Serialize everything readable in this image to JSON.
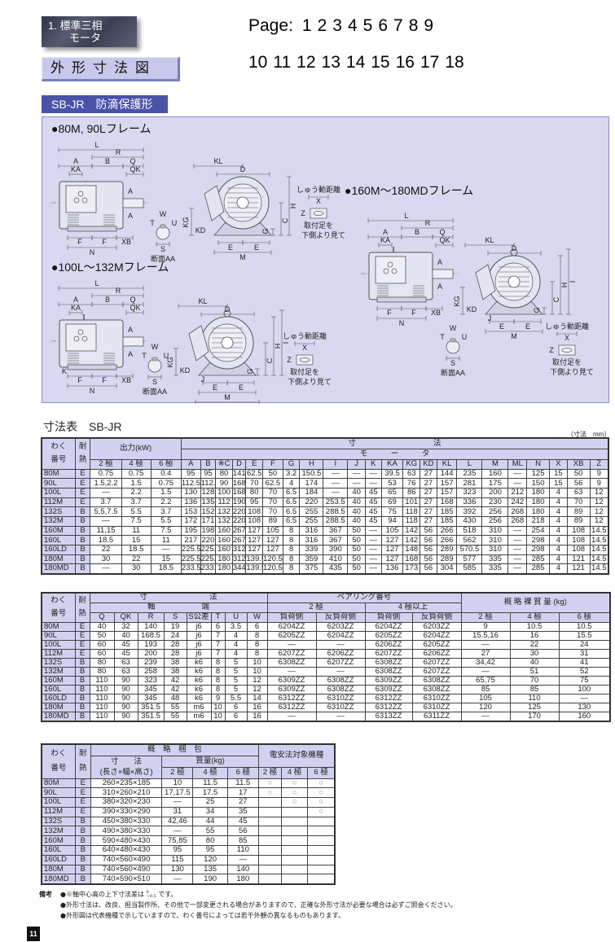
{
  "header": {
    "category_line1": "1. 標準三相",
    "category_line2": "モータ",
    "section_title": "外形寸法図",
    "model_band": "SB-JR　防滴保護形"
  },
  "page_nav": {
    "label": "Page:",
    "row1": [
      "1",
      "2",
      "3",
      "4",
      "5",
      "6",
      "7",
      "8",
      "9"
    ],
    "row2": [
      "10",
      "11",
      "12",
      "13",
      "14",
      "15",
      "16",
      "17",
      "18"
    ]
  },
  "drawings": {
    "section_label": "断面AA",
    "slide_label": "しゅう動距離",
    "foot_note_line1": "取付足を",
    "foot_note_line2": "下側より見て",
    "dim": {
      "L": "L",
      "R": "R",
      "A": "A",
      "B": "B",
      "Q": "Q",
      "QK": "QK",
      "KA": "KA",
      "F": "F",
      "XB": "XB",
      "N": "N",
      "W": "W",
      "T": "T",
      "U": "U",
      "S": "S",
      "KL": "KL",
      "D": "D",
      "H": "H",
      "C": "C",
      "G": "G",
      "KG": "KG",
      "KD": "KD",
      "E": "E",
      "M": "M",
      "X": "X",
      "Z": "Z",
      "K": "K",
      "J": "J",
      "ML": "ML",
      "I": "I"
    },
    "items": [
      {
        "title": "●80M, 90Lフレーム",
        "extra_dims": []
      },
      {
        "title": "●100L～132Mフレーム",
        "extra_dims": [
          "K",
          "J",
          "ML",
          "I"
        ]
      },
      {
        "title": "●160M～180MDフレーム",
        "extra_dims": [
          "J",
          "I"
        ]
      }
    ],
    "colors": {
      "panel": "#d8d8f0",
      "line": "#555555"
    }
  },
  "table_title": "寸法表　SB-JR",
  "unit_note": "（寸法　mm）",
  "table1": {
    "h_frame1": "わく",
    "h_frame2": "番号",
    "h_heat1": "耐",
    "h_heat2": "熱",
    "h_output": "出力(kW)",
    "h_dims": "寸　　　　　　　　　　法",
    "h_motor": "モ　　　ー　　　タ",
    "poles": [
      "2 極",
      "4 極",
      "6 極"
    ],
    "dim_cols": [
      "A",
      "B",
      "※C",
      "D",
      "E",
      "F",
      "G",
      "H",
      "I",
      "J",
      "K",
      "KA",
      "KG",
      "KD",
      "KL",
      "L",
      "M",
      "ML",
      "N",
      "X",
      "XB",
      "Z"
    ],
    "rows": [
      [
        "80M",
        "E",
        "0.75",
        "0.75",
        "0.4",
        "95",
        "95",
        "80",
        "141",
        "62.5",
        "50",
        "3.2",
        "150.5",
        "—",
        "—",
        "—",
        "39.5",
        "63",
        "27",
        "144",
        "235",
        "160",
        "—",
        "125",
        "15",
        "50",
        "9"
      ],
      [
        "90L",
        "E",
        "1.5,2.2",
        "1.5",
        "0.75",
        "112.5",
        "112.5",
        "90",
        "168",
        "70",
        "62.5",
        "4",
        "174",
        "—",
        "—",
        "—",
        "53",
        "76",
        "27",
        "157",
        "281",
        "175",
        "—",
        "150",
        "15",
        "56",
        "9"
      ],
      [
        "100L",
        "E",
        "—",
        "2.2",
        "1.5",
        "130",
        "128",
        "100",
        "168",
        "80",
        "70",
        "6.5",
        "184",
        "—",
        "40",
        "45",
        "65",
        "86",
        "27",
        "157",
        "323",
        "200",
        "212",
        "180",
        "4",
        "63",
        "12"
      ],
      [
        "112M",
        "E",
        "3.7",
        "3.7",
        "2.2",
        "136",
        "135",
        "112",
        "190",
        "95",
        "70",
        "6.5",
        "220",
        "253.5",
        "40",
        "45",
        "69",
        "101",
        "27",
        "168",
        "336",
        "230",
        "242",
        "180",
        "4",
        "70",
        "12"
      ],
      [
        "132S",
        "B",
        "5.5,7.5",
        "5.5",
        "3.7",
        "153",
        "152",
        "132",
        "220",
        "108",
        "70",
        "6.5",
        "255",
        "288.5",
        "40",
        "45",
        "75",
        "118",
        "27",
        "185",
        "392",
        "256",
        "268",
        "180",
        "4",
        "89",
        "12"
      ],
      [
        "132M",
        "B",
        "—",
        "7.5",
        "5.5",
        "172",
        "171",
        "132",
        "220",
        "108",
        "89",
        "6.5",
        "255",
        "288.5",
        "40",
        "45",
        "94",
        "118",
        "27",
        "185",
        "430",
        "256",
        "268",
        "218",
        "4",
        "89",
        "12"
      ],
      [
        "160M",
        "B",
        "11,15",
        "11",
        "7.5",
        "195",
        "198",
        "160",
        "267",
        "127",
        "105",
        "8",
        "316",
        "367",
        "50",
        "—",
        "105",
        "142",
        "56",
        "266",
        "518",
        "310",
        "—",
        "254",
        "4",
        "108",
        "14.5"
      ],
      [
        "160L",
        "B",
        "18.5",
        "15",
        "11",
        "217",
        "220",
        "160",
        "267",
        "127",
        "127",
        "8",
        "316",
        "367",
        "50",
        "—",
        "127",
        "142",
        "56",
        "266",
        "562",
        "310",
        "—",
        "298",
        "4",
        "108",
        "14.5"
      ],
      [
        "160LD",
        "B",
        "22",
        "18.5",
        "—",
        "225.5",
        "225.5",
        "160",
        "312",
        "127",
        "127",
        "8",
        "339",
        "390",
        "50",
        "—",
        "127",
        "148",
        "56",
        "289",
        "570.5",
        "310",
        "—",
        "298",
        "4",
        "108",
        "14.5"
      ],
      [
        "180M",
        "B",
        "30",
        "22",
        "15",
        "225.5",
        "225.5",
        "180",
        "312",
        "139.5",
        "120.5",
        "8",
        "359",
        "410",
        "50",
        "—",
        "127",
        "168",
        "56",
        "289",
        "577",
        "335",
        "—",
        "285",
        "4",
        "121",
        "14.5"
      ],
      [
        "180MD",
        "B",
        "—",
        "30",
        "18.5",
        "233.5",
        "233.5",
        "180",
        "344",
        "139.5",
        "120.5",
        "8",
        "375",
        "435",
        "50",
        "—",
        "136",
        "173",
        "56",
        "304",
        "585",
        "335",
        "—",
        "285",
        "4",
        "121",
        "14.5"
      ]
    ]
  },
  "table2": {
    "h_frame1": "わく",
    "h_frame2": "番号",
    "h_heat1": "耐",
    "h_heat2": "熱",
    "h_dims": "寸　　　　　　　　法",
    "h_shaft": "軸　　　　　　端",
    "h_bearing": "ベアリング番号",
    "h_2pole": "2 極",
    "h_4pole_up": "4 極以上",
    "h_mass": "概 略 裸 質 量 (kg)",
    "cols": [
      "Q",
      "QK",
      "R",
      "S",
      "S公差",
      "T",
      "U",
      "W",
      "負荷側",
      "反負荷側",
      "負荷側",
      "反負荷側",
      "2 極",
      "4 極",
      "6 極"
    ],
    "rows": [
      [
        "80M",
        "E",
        "40",
        "32",
        "140",
        "19",
        "j6",
        "6",
        "3.5",
        "6",
        "6204ZZ",
        "6203ZZ",
        "6204ZZ",
        "6203ZZ",
        "9",
        "10.5",
        "10.5"
      ],
      [
        "90L",
        "E",
        "50",
        "40",
        "168.5",
        "24",
        "j6",
        "7",
        "4",
        "8",
        "6205ZZ",
        "6204ZZ",
        "6205ZZ",
        "6204ZZ",
        "15.5,16",
        "16",
        "15.5"
      ],
      [
        "100L",
        "E",
        "60",
        "45",
        "193",
        "28",
        "j6",
        "7",
        "4",
        "8",
        "—",
        "—",
        "6206ZZ",
        "6205ZZ",
        "—",
        "22",
        "24"
      ],
      [
        "112M",
        "E",
        "60",
        "45",
        "200",
        "28",
        "j6",
        "7",
        "4",
        "8",
        "6207ZZ",
        "6206ZZ",
        "6207ZZ",
        "6206ZZ",
        "27",
        "30",
        "31"
      ],
      [
        "132S",
        "B",
        "80",
        "63",
        "239",
        "38",
        "k6",
        "8",
        "5",
        "10",
        "6308ZZ",
        "6207ZZ",
        "6308ZZ",
        "6207ZZ",
        "34,42",
        "40",
        "41"
      ],
      [
        "132M",
        "B",
        "80",
        "63",
        "258",
        "38",
        "k6",
        "8",
        "5",
        "10",
        "—",
        "—",
        "6308ZZ",
        "6207ZZ",
        "—",
        "51",
        "52"
      ],
      [
        "160M",
        "B",
        "110",
        "90",
        "323",
        "42",
        "k6",
        "8",
        "5",
        "12",
        "6309ZZ",
        "6308ZZ",
        "6309ZZ",
        "6308ZZ",
        "65,75",
        "70",
        "75"
      ],
      [
        "160L",
        "B",
        "110",
        "90",
        "345",
        "42",
        "k6",
        "8",
        "5",
        "12",
        "6309ZZ",
        "6308ZZ",
        "6309ZZ",
        "6308ZZ",
        "85",
        "85",
        "100"
      ],
      [
        "160LD",
        "B",
        "110",
        "90",
        "345",
        "48",
        "k6",
        "9",
        "5.5",
        "14",
        "6312ZZ",
        "6310ZZ",
        "6312ZZ",
        "6310ZZ",
        "105",
        "110",
        "—"
      ],
      [
        "180M",
        "B",
        "110",
        "90",
        "351.5",
        "55",
        "m6",
        "10",
        "6",
        "16",
        "6312ZZ",
        "6310ZZ",
        "6312ZZ",
        "6310ZZ",
        "120",
        "125",
        "130"
      ],
      [
        "180MD",
        "B",
        "110",
        "90",
        "351.5",
        "55",
        "m6",
        "10",
        "6",
        "16",
        "—",
        "—",
        "6313ZZ",
        "6311ZZ",
        "—",
        "170",
        "160"
      ]
    ]
  },
  "table3": {
    "h_frame1": "わく",
    "h_frame2": "番号",
    "h_heat1": "耐",
    "h_heat2": "熱",
    "h_packing": "概　略　梱　包",
    "h_size1": "寸　　法",
    "h_size2": "(長さ×幅×高さ)",
    "h_mass": "質量(kg)",
    "h_law": "電安法対象機種",
    "poles": [
      "2 極",
      "4 極",
      "6 極"
    ],
    "rows": [
      [
        "80M",
        "E",
        "260×235×185",
        "10",
        "11.5",
        "11.5",
        "○",
        "○",
        "○"
      ],
      [
        "90L",
        "E",
        "310×260×210",
        "17,17.5",
        "17.5",
        "17",
        "○",
        "○",
        "○"
      ],
      [
        "100L",
        "E",
        "380×320×230",
        "—",
        "25",
        "27",
        "",
        "○",
        "○"
      ],
      [
        "112M",
        "E",
        "390×330×290",
        "31",
        "34",
        "35",
        "",
        "",
        "○"
      ],
      [
        "132S",
        "B",
        "450×380×330",
        "42,46",
        "44",
        "45",
        "",
        "",
        ""
      ],
      [
        "132M",
        "B",
        "490×380×330",
        "—",
        "55",
        "56",
        "",
        "",
        ""
      ],
      [
        "160M",
        "B",
        "590×480×430",
        "75,85",
        "80",
        "85",
        "",
        "",
        ""
      ],
      [
        "160L",
        "B",
        "640×480×430",
        "95",
        "95",
        "110",
        "",
        "",
        ""
      ],
      [
        "160LD",
        "B",
        "740×560×490",
        "115",
        "120",
        "—",
        "",
        "",
        ""
      ],
      [
        "180M",
        "B",
        "740×560×490",
        "130",
        "135",
        "140",
        "",
        "",
        ""
      ],
      [
        "180MD",
        "B",
        "740×590×510",
        "—",
        "190",
        "180",
        "",
        "",
        ""
      ]
    ]
  },
  "notes": {
    "head": "備考",
    "note1_prefix": "●※軸中心高の上下寸法差は",
    "note1_tol_upper": "0",
    "note1_tol_lower": "−0.5",
    "note1_suffix": "です。",
    "note2": "●外形寸法は、改良、担当製作所、その他で一部変更される場合がありますので、正確な外形寸法が必要な場合は必ずご照会ください。",
    "note3": "●外形図は代表機種で示していますので、わく番号によっては若干外観の異なるものもあります。"
  },
  "page_number": "11",
  "colors": {
    "header_cell": "#d2d2f0",
    "band": "#4a52a8",
    "panel": "#d8d8f0"
  }
}
